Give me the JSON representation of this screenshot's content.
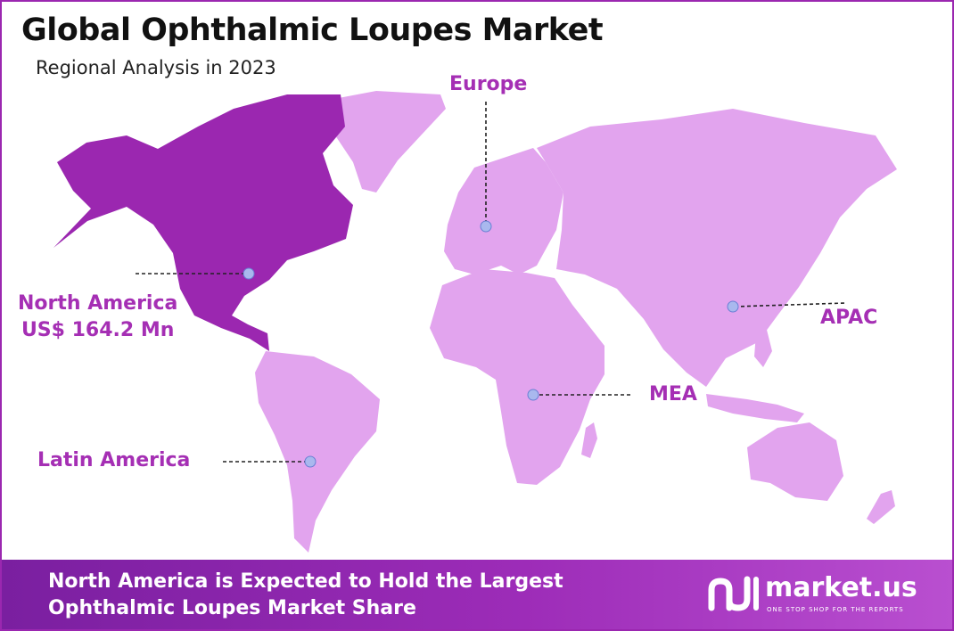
{
  "title": "Global Ophthalmic Loupes Market",
  "subtitle": "Regional Analysis in 2023",
  "regions": {
    "europe": "Europe",
    "north_america": "North America",
    "north_america_value": "US$ 164.2 Mn",
    "apac": "APAC",
    "mea": "MEA",
    "latin_america": "Latin America"
  },
  "footer": {
    "line1": "North America is Expected to Hold the Largest",
    "line2": "Ophthalmic Loupes Market Share"
  },
  "brand": {
    "name": "market.us",
    "tagline": "ONE STOP SHOP FOR THE REPORTS",
    "logo_icon": "market-us-logo-icon"
  },
  "colors": {
    "highlight": "#9b27b0",
    "land": "#e2a4ee",
    "label": "#a52fb4",
    "marker": "#a9b8ee"
  }
}
